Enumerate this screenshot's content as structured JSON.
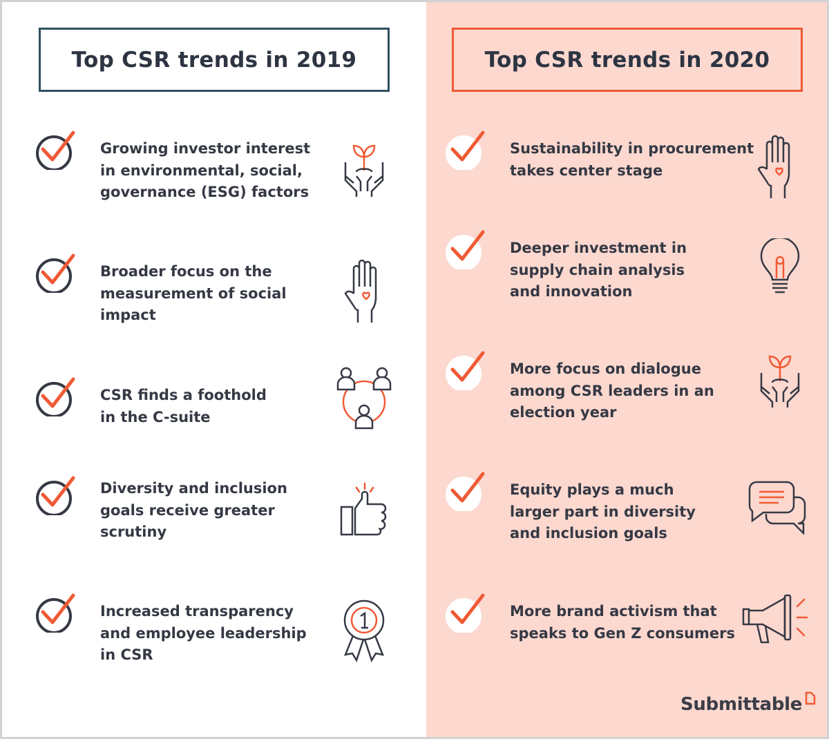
{
  "left": {
    "title": "Top CSR trends in 2019",
    "items": [
      {
        "lines": [
          "Growing investor interest",
          "in environmental, social,",
          "governance (ESG) factors"
        ],
        "icon": "plant-hands-icon"
      },
      {
        "lines": [
          "Broader focus on the",
          "measurement of social",
          "impact"
        ],
        "icon": "hand-heart-icon"
      },
      {
        "lines": [
          "CSR finds a foothold",
          "in the C-suite"
        ],
        "icon": "people-network-icon"
      },
      {
        "lines": [
          "Diversity and inclusion",
          "goals receive greater",
          "scrutiny"
        ],
        "icon": "thumbs-up-icon"
      },
      {
        "lines": [
          "Increased transparency",
          "and employee leadership",
          "in CSR"
        ],
        "icon": "award-ribbon-icon"
      }
    ]
  },
  "right": {
    "title": "Top CSR trends in 2020",
    "items": [
      {
        "lines": [
          "Sustainability in procurement",
          "takes center stage"
        ],
        "icon": "hand-heart-icon"
      },
      {
        "lines": [
          "Deeper investment in",
          "supply chain analysis",
          "and innovation"
        ],
        "icon": "lightbulb-icon"
      },
      {
        "lines": [
          "More focus on dialogue",
          "among CSR leaders in an",
          "election year"
        ],
        "icon": "plant-hands-icon"
      },
      {
        "lines": [
          "Equity plays a much",
          "larger part in diversity",
          "and inclusion goals"
        ],
        "icon": "chat-bubbles-icon"
      },
      {
        "lines": [
          "More brand activism that",
          "speaks to Gen Z consumers"
        ],
        "icon": "megaphone-icon"
      }
    ]
  },
  "brand": {
    "name": "Submittable"
  },
  "colors": {
    "accent": "#ef5a35",
    "dark": "#353944",
    "left_border": "#2f4f5e",
    "right_bg": "#fcd8cf"
  }
}
